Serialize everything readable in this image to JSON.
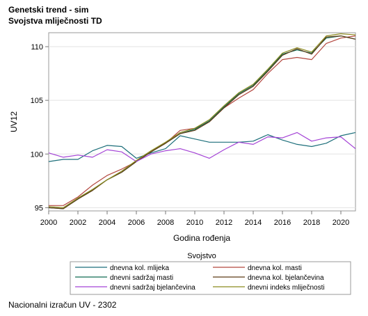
{
  "titles": {
    "line1": "Genetski trend - sim",
    "line2": "Svojstva mliječnosti TD"
  },
  "footnote": "Nacionalni izračun UV - 2302",
  "chart_data": {
    "type": "line",
    "xlabel": "Godina rođenja",
    "ylabel": "UV12",
    "xlim": [
      2000,
      2021
    ],
    "ylim": [
      94.7,
      111.3
    ],
    "xticks": [
      2000,
      2002,
      2004,
      2006,
      2008,
      2010,
      2012,
      2014,
      2016,
      2018,
      2020
    ],
    "yticks": [
      95,
      100,
      105,
      110
    ],
    "grid": "horizontal",
    "legend": {
      "title": "Svojstvo",
      "placement": "bottom"
    },
    "x": [
      2000,
      2001,
      2002,
      2003,
      2004,
      2005,
      2006,
      2007,
      2008,
      2009,
      2010,
      2011,
      2012,
      2013,
      2014,
      2015,
      2016,
      2017,
      2018,
      2019,
      2020,
      2021
    ],
    "series": [
      {
        "name": "dnevna kol. mlijeka",
        "color": "#1c6e7a",
        "values": [
          99.3,
          99.5,
          99.5,
          100.3,
          100.8,
          100.7,
          99.6,
          100.1,
          100.5,
          101.7,
          101.4,
          101.1,
          101.1,
          101.1,
          101.2,
          101.8,
          101.3,
          100.9,
          100.7,
          101.0,
          101.7,
          102.0
        ]
      },
      {
        "name": "dnevna kol. masti",
        "color": "#b3473f",
        "values": [
          95.2,
          95.2,
          96.0,
          97.1,
          98.0,
          98.6,
          99.3,
          100.2,
          101.0,
          102.2,
          102.4,
          103.0,
          104.3,
          105.2,
          106.0,
          107.5,
          108.8,
          109.0,
          108.8,
          110.3,
          110.8,
          111.0
        ]
      },
      {
        "name": "dnevni sadržaj masti",
        "color": "#0f6a52",
        "values": [
          95.0,
          94.9,
          95.8,
          96.7,
          97.6,
          98.3,
          99.3,
          100.2,
          101.0,
          101.9,
          102.3,
          103.1,
          104.4,
          105.6,
          106.4,
          107.8,
          109.3,
          109.7,
          109.4,
          110.8,
          111.0,
          110.7
        ]
      },
      {
        "name": "dnevna kol. bjelančevina",
        "color": "#5c3a14",
        "values": [
          95.0,
          94.9,
          95.8,
          96.6,
          97.6,
          98.3,
          99.3,
          100.2,
          101.0,
          101.9,
          102.2,
          103.0,
          104.3,
          105.5,
          106.3,
          107.7,
          109.2,
          109.8,
          109.3,
          110.9,
          111.0,
          110.7
        ]
      },
      {
        "name": "dnevni sadržaj bjelančevina",
        "color": "#a443d6",
        "values": [
          100.1,
          99.7,
          99.9,
          99.7,
          100.4,
          100.2,
          99.3,
          100.0,
          100.3,
          100.5,
          100.1,
          99.6,
          100.4,
          101.1,
          100.9,
          101.6,
          101.5,
          102.0,
          101.2,
          101.5,
          101.6,
          100.5
        ]
      },
      {
        "name": "dnevni indeks mliječnosti",
        "color": "#8b8a1f",
        "values": [
          95.1,
          95.0,
          95.9,
          96.7,
          97.6,
          98.4,
          99.4,
          100.3,
          101.1,
          102.0,
          102.4,
          103.2,
          104.5,
          105.7,
          106.5,
          107.9,
          109.4,
          109.9,
          109.5,
          111.0,
          111.2,
          111.1
        ]
      }
    ]
  }
}
